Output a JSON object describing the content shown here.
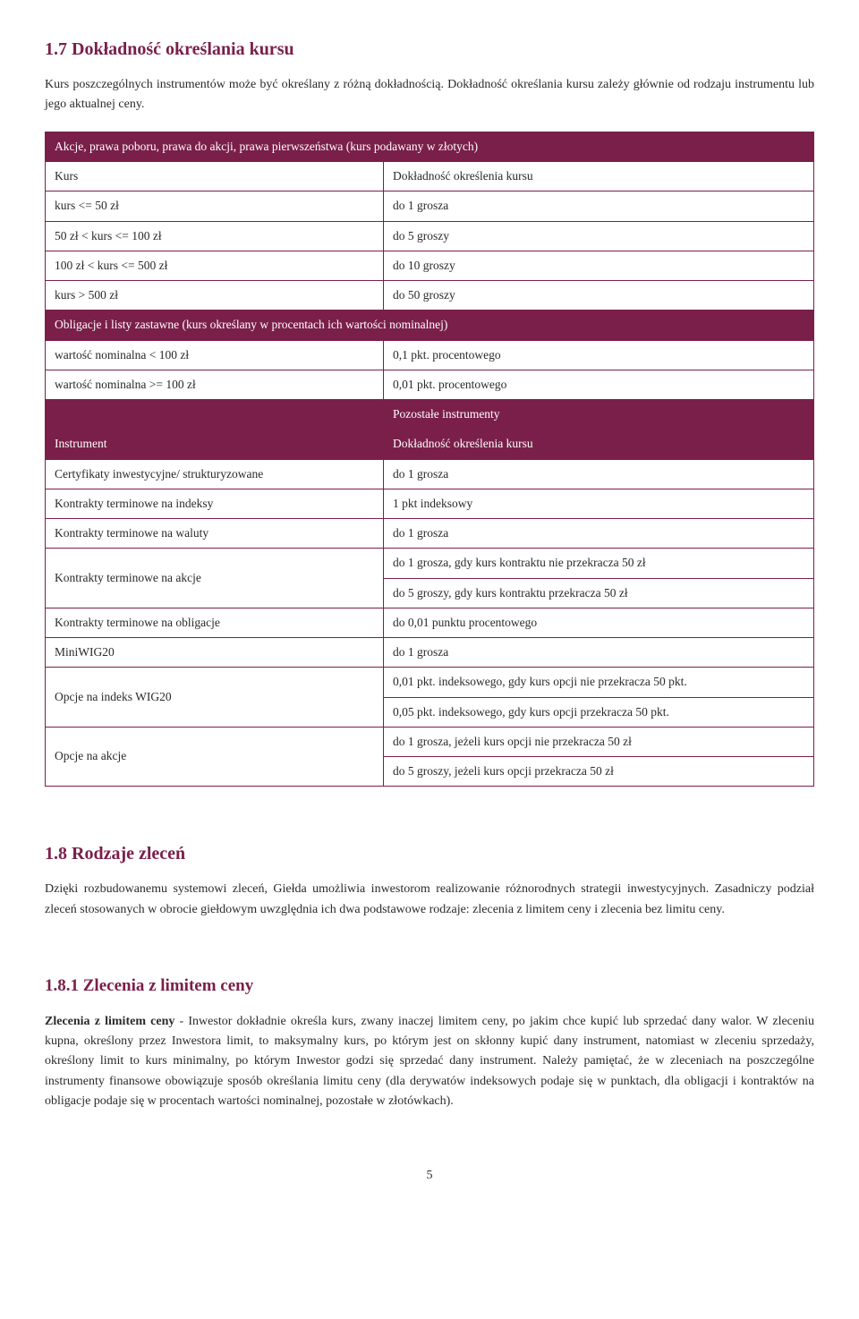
{
  "section17": {
    "heading": "1.7  Dokładność określania kursu",
    "para": "Kurs poszczególnych instrumentów może być określany z różną dokładnością. Dokładność określania kursu zależy głównie od rodzaju instrumentu lub jego aktualnej ceny."
  },
  "table": {
    "row1": {
      "header": "Akcje, prawa poboru, prawa do akcji, prawa pierwszeństwa (kurs podawany w złotych)"
    },
    "row2": {
      "c1": "Kurs",
      "c2": "Dokładność określenia kursu"
    },
    "row3": {
      "c1": "kurs <= 50 zł",
      "c2": "do 1 grosza"
    },
    "row4": {
      "c1": "50 zł < kurs <= 100 zł",
      "c2": "do 5 groszy"
    },
    "row5": {
      "c1": "100 zł < kurs <= 500 zł",
      "c2": "do 10 groszy"
    },
    "row6": {
      "c1": "kurs > 500 zł",
      "c2": "do 50 groszy"
    },
    "row7": {
      "header": "Obligacje i listy zastawne (kurs określany w procentach ich wartości nominalnej)"
    },
    "row8": {
      "c1": "wartość nominalna < 100 zł",
      "c2": "0,1 pkt. procentowego"
    },
    "row9": {
      "c1": "wartość nominalna >= 100 zł",
      "c2": "0,01 pkt. procentowego"
    },
    "row10": {
      "c2": "Pozostałe instrumenty"
    },
    "row11": {
      "c1": "Instrument",
      "c2": "Dokładność określenia kursu"
    },
    "row12": {
      "c1": "Certyfikaty inwestycyjne/ strukturyzowane",
      "c2": "do 1 grosza"
    },
    "row13": {
      "c1": "Kontrakty terminowe na indeksy",
      "c2": "1 pkt indeksowy"
    },
    "row14": {
      "c1": "Kontrakty terminowe na waluty",
      "c2": "do 1 grosza"
    },
    "row15": {
      "c1": "Kontrakty terminowe na akcje",
      "c2a": "do 1 grosza, gdy kurs kontraktu nie przekracza 50 zł",
      "c2b": "do 5 groszy, gdy kurs kontraktu przekracza 50 zł"
    },
    "row16": {
      "c1": "Kontrakty terminowe na obligacje",
      "c2": "do 0,01 punktu procentowego"
    },
    "row17": {
      "c1": "MiniWIG20",
      "c2": "do 1 grosza"
    },
    "row18": {
      "c1": "Opcje na indeks WIG20",
      "c2a": "0,01 pkt. indeksowego, gdy kurs opcji nie przekracza 50 pkt.",
      "c2b": "0,05 pkt. indeksowego, gdy kurs opcji przekracza 50 pkt."
    },
    "row19": {
      "c1": "Opcje na akcje",
      "c2a": "do 1 grosza, jeżeli kurs opcji nie przekracza 50 zł",
      "c2b": "do 5 groszy, jeżeli kurs opcji przekracza 50 zł"
    }
  },
  "section18": {
    "heading": "1.8  Rodzaje zleceń",
    "para": "Dzięki rozbudowanemu systemowi zleceń, Giełda umożliwia inwestorom realizowanie różnorodnych strategii inwestycyjnych. Zasadniczy podział zleceń stosowanych w obrocie giełdowym uwzględnia ich dwa podstawowe rodzaje: zlecenia z limitem ceny i zlecenia bez limitu ceny."
  },
  "section181": {
    "heading": "1.8.1  Zlecenia z limitem ceny",
    "bold_lead": "Zlecenia z limitem ceny",
    "para": " - Inwestor dokładnie określa kurs, zwany inaczej limitem ceny, po jakim chce kupić lub sprzedać dany walor. W zleceniu kupna, określony przez Inwestora limit, to maksymalny kurs, po którym jest on skłonny kupić dany instrument, natomiast w zleceniu sprzedaży, określony limit to kurs minimalny, po którym Inwestor godzi się sprzedać dany instrument. Należy pamiętać, że w zleceniach na poszczególne instrumenty finansowe obowiązuje sposób określania limitu ceny (dla derywatów indeksowych podaje się w punktach, dla obligacji i kontraktów na obligacje podaje się w procentach wartości nominalnej, pozostałe w złotówkach)."
  },
  "page_number": "5"
}
